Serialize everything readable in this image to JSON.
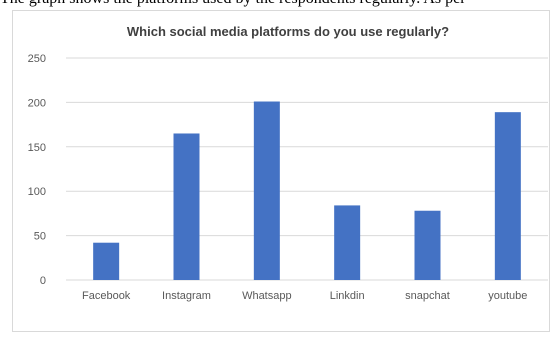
{
  "caption_fragment": "The graph shows the platforms used by the respondents regularly. As per",
  "chart_data": {
    "type": "bar",
    "title": "Which social media platforms do you use regularly?",
    "categories": [
      "Facebook",
      "Instagram",
      "Whatsapp",
      "Linkdin",
      "snapchat",
      "youtube"
    ],
    "values": [
      42,
      165,
      201,
      84,
      78,
      189
    ],
    "ylim": [
      0,
      250
    ],
    "yticks": [
      "0",
      "50",
      "100",
      "150",
      "200",
      "250"
    ],
    "xlabel": "",
    "ylabel": "",
    "grid": true,
    "legend": "none",
    "bar_color": "#4472c4",
    "grid_color": "#d9d9d9"
  }
}
